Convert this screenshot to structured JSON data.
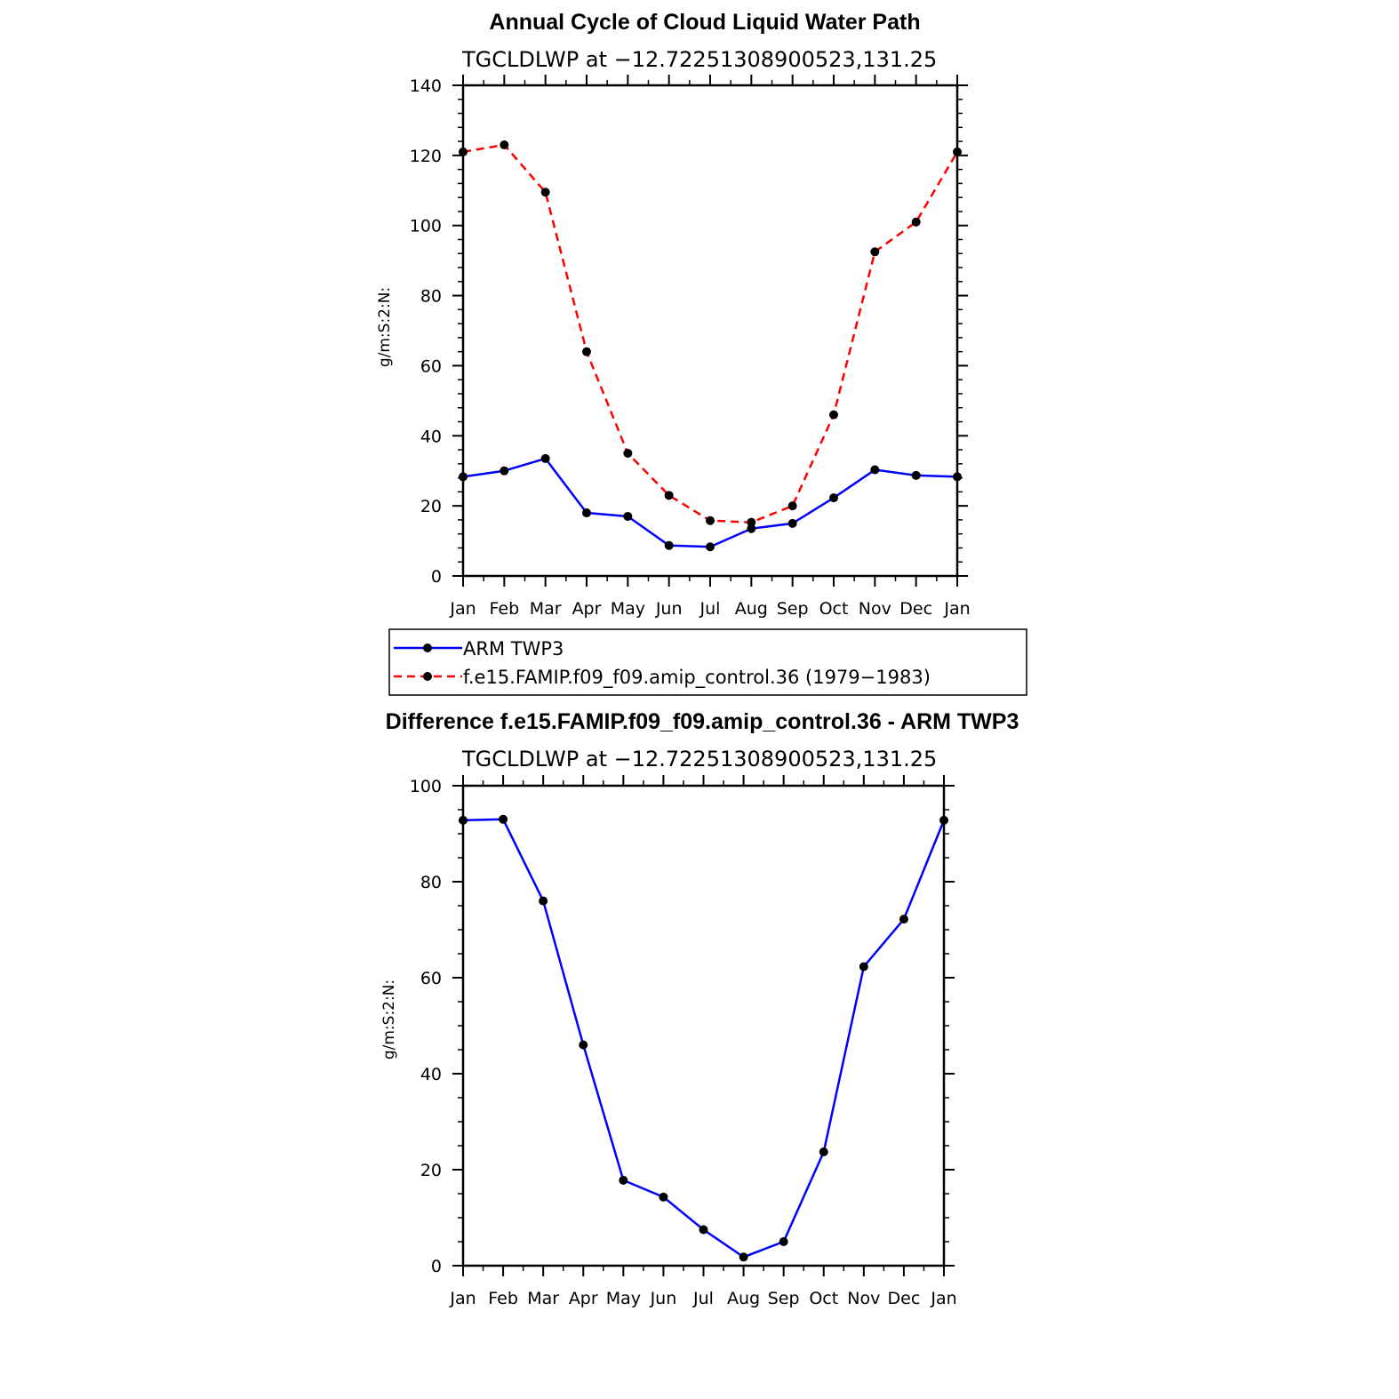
{
  "chart_data": [
    {
      "type": "line",
      "title": "Annual Cycle of Cloud Liquid Water Path",
      "subtitle": "TGCLDLWP at −12.72251308900523,131.25",
      "xlabel": "",
      "ylabel": "g/m:S:2:N:",
      "categories": [
        "Jan",
        "Feb",
        "Mar",
        "Apr",
        "May",
        "Jun",
        "Jul",
        "Aug",
        "Sep",
        "Oct",
        "Nov",
        "Dec",
        "Jan"
      ],
      "ylim": [
        0,
        140
      ],
      "y_ticks": [
        "0",
        "20",
        "40",
        "60",
        "80",
        "100",
        "120",
        "140"
      ],
      "grid": false,
      "legend_position": "below",
      "series": [
        {
          "name": "ARM TWP3",
          "color": "#0000ff",
          "dash": "solid",
          "values": [
            28.3,
            30.0,
            33.5,
            18.0,
            17.0,
            8.7,
            8.3,
            13.5,
            15.0,
            22.3,
            30.3,
            28.7,
            28.3
          ]
        },
        {
          "name": "f.e15.FAMIP.f09_f09.amip_control.36 (1979−1983)",
          "color": "#ff0000",
          "dash": "dashed",
          "values": [
            121.0,
            123.0,
            109.5,
            64.0,
            35.0,
            23.0,
            15.8,
            15.3,
            20.0,
            46.0,
            92.5,
            101.0,
            121.0
          ]
        }
      ]
    },
    {
      "type": "line",
      "title": "Difference f.e15.FAMIP.f09_f09.amip_control.36 - ARM TWP3",
      "subtitle": "TGCLDLWP at −12.72251308900523,131.25",
      "xlabel": "",
      "ylabel": "g/m:S:2:N:",
      "categories": [
        "Jan",
        "Feb",
        "Mar",
        "Apr",
        "May",
        "Jun",
        "Jul",
        "Aug",
        "Sep",
        "Oct",
        "Nov",
        "Dec",
        "Jan"
      ],
      "ylim": [
        0,
        100
      ],
      "y_ticks": [
        "0",
        "20",
        "40",
        "60",
        "80",
        "100"
      ],
      "grid": false,
      "series": [
        {
          "color": "#0000ff",
          "dash": "solid",
          "values": [
            92.8,
            93.0,
            76.0,
            46.0,
            17.8,
            14.3,
            7.5,
            1.8,
            5.0,
            23.7,
            62.3,
            72.2,
            92.8
          ]
        }
      ]
    }
  ]
}
